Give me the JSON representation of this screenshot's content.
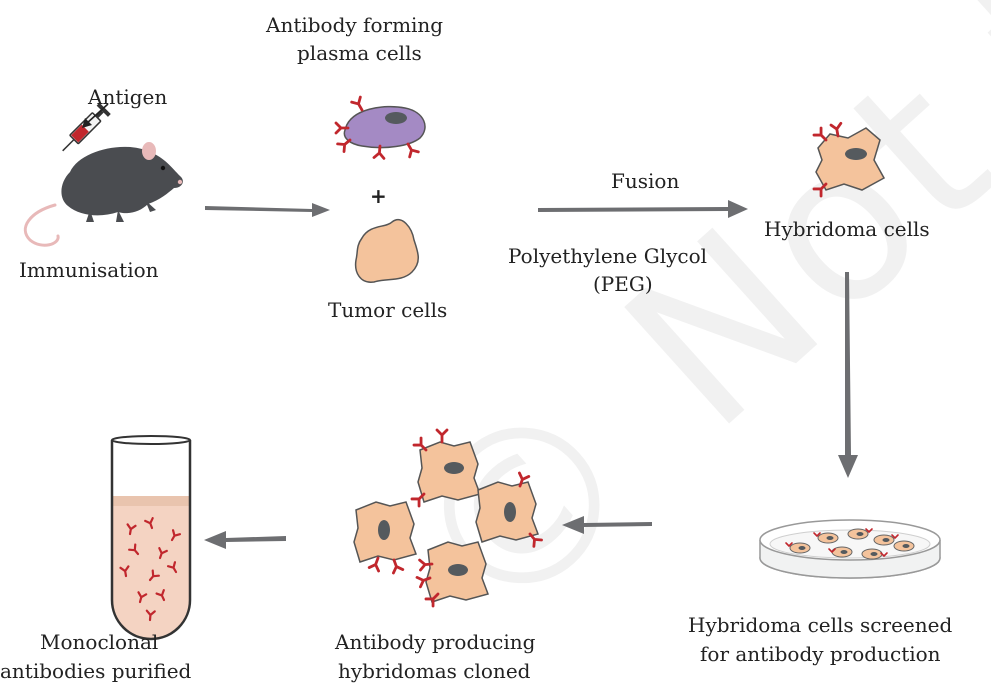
{
  "watermark": "© Not to be republished",
  "labels": {
    "antigen": "Antigen",
    "plasma_cells_line1": "Antibody forming",
    "plasma_cells_line2": "plasma cells",
    "plus": "+",
    "immunisation": "Immunisation",
    "tumor_cells": "Tumor cells",
    "fusion": "Fusion",
    "peg_line1": "Polyethylene Glycol",
    "peg_line2": "(PEG)",
    "hybridoma_cells": "Hybridoma cells",
    "screened_line1": "Hybridoma cells screened",
    "screened_line2": "for antibody production",
    "cloned_line1": "Antibody producing",
    "cloned_line2": "hybridomas cloned",
    "purified_line1": "Monoclonal",
    "purified_line2": "antibodies purified"
  },
  "colors": {
    "arrow": "#6d6e71",
    "antibody": "#c1272d",
    "tumor_cell": "#f4c39c",
    "tumor_cell_outline": "#555555",
    "plasma_cell": "#a48ac4",
    "nucleus": "#555a5e",
    "mouse": "#4a4c50",
    "tube_liquid": "#f4d3c2"
  }
}
